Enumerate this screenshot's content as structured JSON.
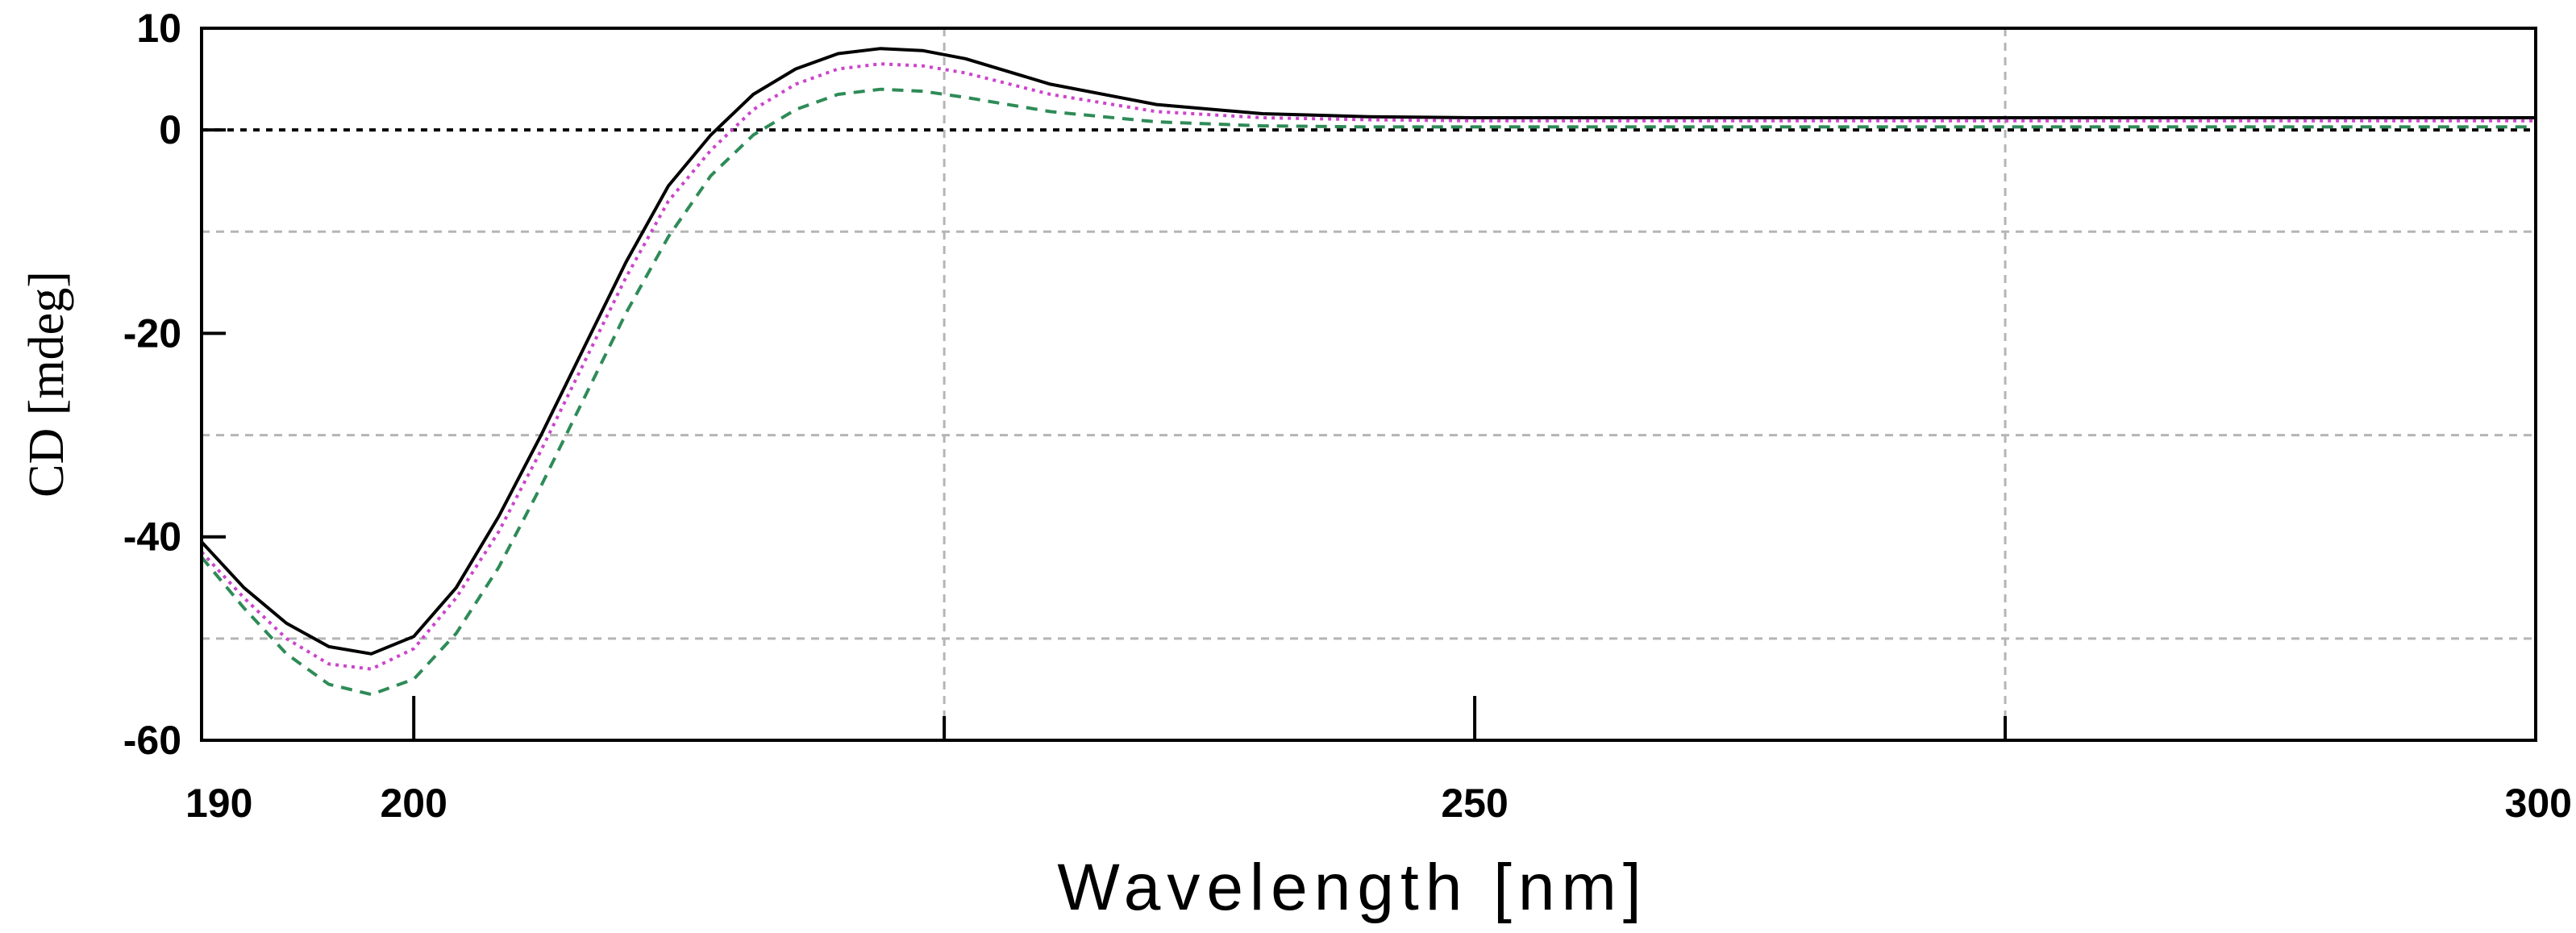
{
  "chart_data": {
    "type": "line",
    "xlabel": "Wavelength [nm]",
    "ylabel": "CD [mdeg]",
    "xlim": [
      190,
      300
    ],
    "ylim": [
      -60,
      10
    ],
    "x_ticks_labeled": [
      190,
      200,
      250,
      300
    ],
    "x_ticks_major": [
      200,
      250
    ],
    "x_gridlines": [
      225,
      275
    ],
    "y_ticks_labeled": [
      10,
      0,
      -20,
      -40,
      -60
    ],
    "y_ticks_major": [
      10,
      0,
      -20,
      -40,
      -60
    ],
    "y_gridlines": [
      -10,
      -30,
      -50
    ],
    "zero_line": true,
    "grid": true,
    "series": [
      {
        "color": "#000000",
        "style": "solid",
        "x": [
          190,
          192,
          194,
          196,
          198,
          200,
          202,
          204,
          206,
          208,
          210,
          212,
          214,
          216,
          218,
          220,
          222,
          224,
          226,
          230,
          235,
          240,
          245,
          250,
          260,
          270,
          280,
          290,
          300
        ],
        "y": [
          -40.5,
          -45,
          -48.5,
          -50.8,
          -51.5,
          -49.8,
          -45,
          -38,
          -30,
          -21.5,
          -13,
          -5.5,
          -0.5,
          3.5,
          6,
          7.5,
          8,
          7.8,
          7,
          4.5,
          2.5,
          1.6,
          1.3,
          1.2,
          1.2,
          1.2,
          1.2,
          1.2,
          1.2
        ]
      },
      {
        "color": "#cc44cc",
        "style": "dotted",
        "x": [
          190,
          192,
          194,
          196,
          198,
          200,
          202,
          204,
          206,
          208,
          210,
          212,
          214,
          216,
          218,
          220,
          222,
          224,
          226,
          230,
          235,
          240,
          245,
          250,
          260,
          270,
          280,
          290,
          300
        ],
        "y": [
          -41.5,
          -46,
          -50,
          -52.5,
          -53,
          -51,
          -46,
          -39.5,
          -31.5,
          -23,
          -14.5,
          -7,
          -2,
          2,
          4.5,
          6,
          6.5,
          6.3,
          5.6,
          3.5,
          1.8,
          1.2,
          1.0,
          0.9,
          0.9,
          0.9,
          0.9,
          0.9,
          0.9
        ]
      },
      {
        "color": "#2e8b57",
        "style": "dashed",
        "x": [
          190,
          192,
          194,
          196,
          198,
          200,
          202,
          204,
          206,
          208,
          210,
          212,
          214,
          216,
          218,
          220,
          222,
          224,
          226,
          230,
          235,
          240,
          245,
          250,
          260,
          270,
          280,
          290,
          300
        ],
        "y": [
          -42,
          -47,
          -51.5,
          -54.5,
          -55.5,
          -54,
          -49.5,
          -43,
          -35,
          -26.5,
          -18,
          -10.5,
          -4.5,
          -0.5,
          2,
          3.5,
          4,
          3.8,
          3.2,
          1.8,
          0.8,
          0.4,
          0.3,
          0.3,
          0.3,
          0.3,
          0.3,
          0.3,
          0.3
        ]
      }
    ]
  }
}
